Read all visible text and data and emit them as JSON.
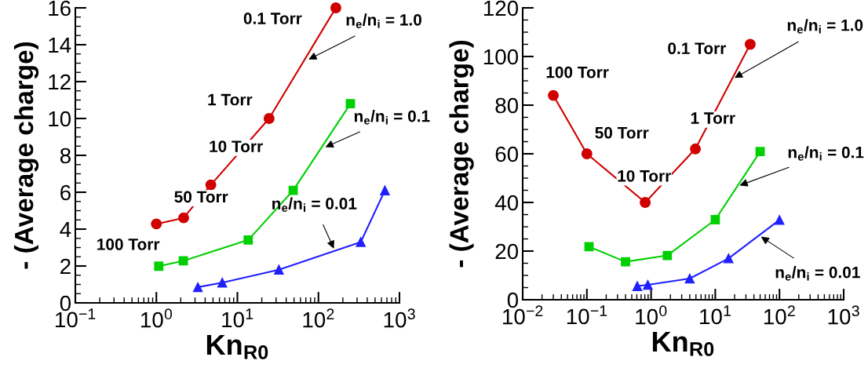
{
  "chart_data": [
    {
      "type": "line",
      "xlabel": "Kn$_{R0}$",
      "ylabel": "- (Average charge)",
      "log": "x",
      "xlim": [
        0.1,
        1000
      ],
      "ylim": [
        0,
        16
      ],
      "xticks": [
        {
          "value": 0.1,
          "label": "10$^{−1}$"
        },
        {
          "value": 1,
          "label": "10$^{0}$"
        },
        {
          "value": 10,
          "label": "10$^{1}$"
        },
        {
          "value": 100,
          "label": "10$^{2}$"
        },
        {
          "value": 1000,
          "label": "10$^{3}$"
        }
      ],
      "yticks": [
        0,
        2,
        4,
        6,
        8,
        10,
        12,
        14,
        16
      ],
      "grid": false,
      "legend": false,
      "series": [
        {
          "color": "#d00000",
          "marker": "circle",
          "x": [
            1.0,
            2.17,
            4.7,
            24.6,
            164
          ],
          "values": [
            4.28,
            4.61,
            6.4,
            10.0,
            16.0
          ]
        },
        {
          "color": "#00d000",
          "marker": "square",
          "x": [
            1.07,
            2.15,
            13.6,
            48.8,
            248
          ],
          "values": [
            1.99,
            2.28,
            3.41,
            6.1,
            10.8
          ]
        },
        {
          "color": "#2020ff",
          "marker": "triangle",
          "x": [
            3.25,
            6.5,
            32.5,
            333,
            661
          ],
          "values": [
            0.85,
            1.1,
            1.8,
            3.3,
            6.1
          ]
        }
      ],
      "annotations": [
        {
          "text": "0.1 Torr",
          "x": 164,
          "y": 16.0
        },
        {
          "text": "1 Torr",
          "x": 24.6,
          "y": 10.0
        },
        {
          "text": "10 Torr",
          "x": 4.7,
          "y": 6.4
        },
        {
          "text": "50 Torr",
          "x": 2.17,
          "y": 4.61
        },
        {
          "text": "100 Torr",
          "x": 1.0,
          "y": 4.28
        },
        {
          "text": "n$_{e}$/n$_{i}$ = 1.0",
          "x": 75.7,
          "y": 13.2
        },
        {
          "text": "n$_{e}$/n$_{i}$ = 0.1",
          "x": 122,
          "y": 8.45
        },
        {
          "text": "n$_{e}$/n$_{i}$ = 0.01",
          "x": 155,
          "y": 2.94
        }
      ]
    },
    {
      "type": "line",
      "xlabel": "Kn$_{R0}$",
      "ylabel": "- (Average charge)",
      "log": "x",
      "xlim": [
        0.01,
        1000
      ],
      "ylim": [
        0,
        120
      ],
      "xticks": [
        {
          "value": 0.01,
          "label": "10$^{−2}$"
        },
        {
          "value": 0.1,
          "label": "10$^{−1}$"
        },
        {
          "value": 1,
          "label": "10$^{0}$"
        },
        {
          "value": 10,
          "label": "10$^{1}$"
        },
        {
          "value": 100,
          "label": "10$^{2}$"
        },
        {
          "value": 1000,
          "label": "10$^{3}$"
        }
      ],
      "yticks": [
        0,
        20,
        40,
        60,
        80,
        100,
        120
      ],
      "grid": false,
      "legend": false,
      "series": [
        {
          "color": "#d00000",
          "marker": "circle",
          "x": [
            0.03,
            0.1,
            0.81,
            4.9,
            35
          ],
          "values": [
            84,
            60,
            40,
            62,
            105
          ]
        },
        {
          "color": "#00d000",
          "marker": "square",
          "x": [
            0.108,
            0.4,
            1.79,
            10,
            50
          ],
          "values": [
            21.8,
            15.6,
            18.2,
            32.9,
            60.9
          ]
        },
        {
          "color": "#2020ff",
          "marker": "triangle",
          "x": [
            0.61,
            0.89,
            4.0,
            16.1,
            100
          ],
          "values": [
            5.6,
            6.1,
            8.7,
            17,
            32.8
          ]
        }
      ],
      "annotations": [
        {
          "text": "100 Torr",
          "x": 0.03,
          "y": 84
        },
        {
          "text": "50 Torr",
          "x": 0.1,
          "y": 60
        },
        {
          "text": "10 Torr",
          "x": 0.81,
          "y": 40
        },
        {
          "text": "1 Torr",
          "x": 4.9,
          "y": 62
        },
        {
          "text": "0.1 Torr",
          "x": 35,
          "y": 105
        },
        {
          "text": "n$_{e}$/n$_{i}$ = 1.0",
          "x": 20,
          "y": 91.2
        },
        {
          "text": "n$_{e}$/n$_{i}$ = 0.1",
          "x": 24,
          "y": 47
        },
        {
          "text": "n$_{e}$/n$_{i}$ = 0.01",
          "x": 51.6,
          "y": 25.9
        }
      ]
    }
  ]
}
